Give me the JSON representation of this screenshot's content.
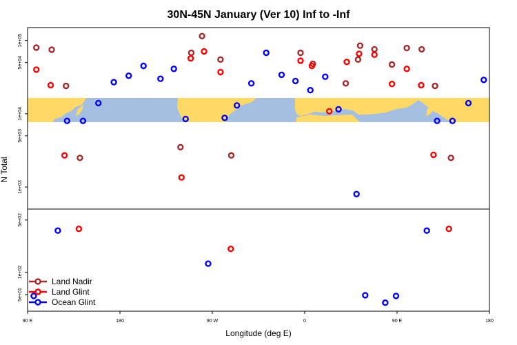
{
  "chart_data": {
    "type": "scatter",
    "title": "30N-45N January (Ver 10)   Inf to -Inf",
    "xlabel": "Longitude (deg E)",
    "ylabel": "N Total",
    "x_ticks": [
      {
        "value": 0,
        "label": "90 E"
      },
      {
        "value": 90,
        "label": "180"
      },
      {
        "value": 180,
        "label": "90 W"
      },
      {
        "value": 270,
        "label": "0"
      },
      {
        "value": 360,
        "label": "90 E"
      },
      {
        "value": 450,
        "label": "180"
      }
    ],
    "y_ticks_upper": [
      {
        "value": 1000,
        "label": "1e+03"
      },
      {
        "value": 5000,
        "label": "5e+03"
      },
      {
        "value": 10000,
        "label": "1e+04"
      },
      {
        "value": 50000,
        "label": "5e+04"
      },
      {
        "value": 100000,
        "label": "1e+05"
      }
    ],
    "y_ticks_lower": [
      {
        "value": 50,
        "label": "5e+01"
      },
      {
        "value": 100,
        "label": "1e+02"
      },
      {
        "value": 500,
        "label": "5e+02"
      }
    ],
    "map_band": "30N-45N",
    "colors": {
      "land_nadir": "#a52a2a",
      "land_glint": "#ff0000",
      "ocean_glint": "#0000ff",
      "map_land": "#ffd966",
      "map_ocean": "#a4bfdf"
    },
    "series": [
      {
        "name": "Land Nadir",
        "color": "#a52a2a",
        "points": [
          {
            "x": 8.5,
            "y": 80000
          },
          {
            "x": 23.5,
            "y": 75000
          },
          {
            "x": 37.5,
            "y": 24000
          },
          {
            "x": 51,
            "y": 2500
          },
          {
            "x": 149,
            "y": 3500
          },
          {
            "x": 159.5,
            "y": 68000
          },
          {
            "x": 170,
            "y": 115000
          },
          {
            "x": 188,
            "y": 55000
          },
          {
            "x": 198.5,
            "y": 2700
          },
          {
            "x": 266,
            "y": 68000
          },
          {
            "x": 278,
            "y": 48000
          },
          {
            "x": 310,
            "y": 26000
          },
          {
            "x": 322,
            "y": 55000
          },
          {
            "x": 324,
            "y": 85000
          },
          {
            "x": 338,
            "y": 76000
          },
          {
            "x": 355,
            "y": 47000
          },
          {
            "x": 369.5,
            "y": 79000
          },
          {
            "x": 384,
            "y": 76000
          },
          {
            "x": 397,
            "y": 24000
          },
          {
            "x": 412.5,
            "y": 2500
          }
        ]
      },
      {
        "name": "Land Glint",
        "color": "#ff0000",
        "points": [
          {
            "x": 8.5,
            "y": 40000
          },
          {
            "x": 22.5,
            "y": 24500
          },
          {
            "x": 36,
            "y": 2700
          },
          {
            "x": 50,
            "y": 380
          },
          {
            "x": 150,
            "y": 1350
          },
          {
            "x": 159,
            "y": 57000
          },
          {
            "x": 172,
            "y": 71000
          },
          {
            "x": 188,
            "y": 37000
          },
          {
            "x": 198,
            "y": 205
          },
          {
            "x": 266,
            "y": 53000
          },
          {
            "x": 277,
            "y": 45000
          },
          {
            "x": 294,
            "y": 10800
          },
          {
            "x": 311,
            "y": 51000
          },
          {
            "x": 323,
            "y": 66000
          },
          {
            "x": 338,
            "y": 64000
          },
          {
            "x": 355,
            "y": 25500
          },
          {
            "x": 369.5,
            "y": 41000
          },
          {
            "x": 383.5,
            "y": 24500
          },
          {
            "x": 395.5,
            "y": 2750
          },
          {
            "x": 410.5,
            "y": 380
          }
        ]
      },
      {
        "name": "Ocean Glint",
        "color": "#0000ff",
        "points": [
          {
            "x": 6,
            "y": 48
          },
          {
            "x": 29.5,
            "y": 360
          },
          {
            "x": 38.5,
            "y": 8000
          },
          {
            "x": 54,
            "y": 8000
          },
          {
            "x": 69,
            "y": 14000
          },
          {
            "x": 84,
            "y": 27000
          },
          {
            "x": 98.5,
            "y": 33000
          },
          {
            "x": 113,
            "y": 45000
          },
          {
            "x": 129.5,
            "y": 30000
          },
          {
            "x": 142.5,
            "y": 41000
          },
          {
            "x": 154,
            "y": 8500
          },
          {
            "x": 176,
            "y": 130
          },
          {
            "x": 192,
            "y": 8800
          },
          {
            "x": 204,
            "y": 13000
          },
          {
            "x": 218,
            "y": 26000
          },
          {
            "x": 232.5,
            "y": 68000
          },
          {
            "x": 247.5,
            "y": 34000
          },
          {
            "x": 261,
            "y": 28000
          },
          {
            "x": 275.5,
            "y": 21000
          },
          {
            "x": 290,
            "y": 32000
          },
          {
            "x": 303,
            "y": 11500
          },
          {
            "x": 320.5,
            "y": 800
          },
          {
            "x": 329,
            "y": 49
          },
          {
            "x": 348.5,
            "y": 39
          },
          {
            "x": 359,
            "y": 48
          },
          {
            "x": 389,
            "y": 360
          },
          {
            "x": 399,
            "y": 8000
          },
          {
            "x": 414,
            "y": 8000
          },
          {
            "x": 429.5,
            "y": 14000
          },
          {
            "x": 444.5,
            "y": 29000
          }
        ]
      }
    ],
    "legend": {
      "position": "bottom-left",
      "entries": [
        "Land Nadir",
        "Land Glint",
        "Ocean Glint"
      ]
    }
  }
}
